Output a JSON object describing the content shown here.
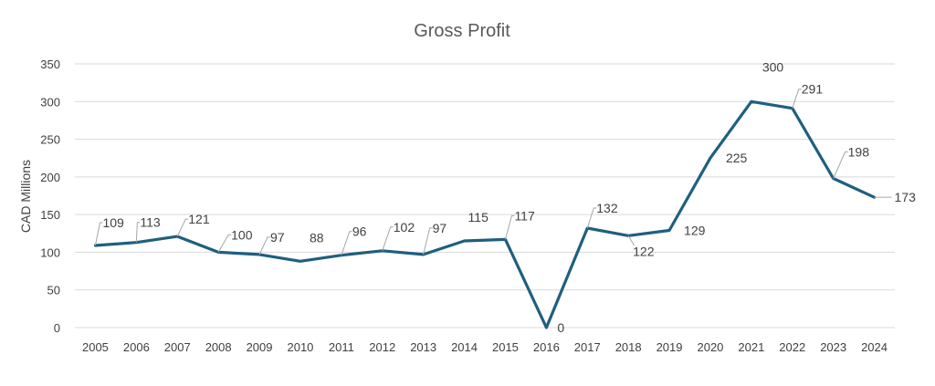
{
  "chart_data": {
    "type": "line",
    "title": "Gross Profit",
    "xlabel": "",
    "ylabel": "CAD Millions",
    "ylim": [
      0,
      350
    ],
    "yticks": [
      0,
      50,
      100,
      150,
      200,
      250,
      300,
      350
    ],
    "grid": true,
    "legend": "none",
    "categories": [
      "2005",
      "2006",
      "2007",
      "2008",
      "2009",
      "2010",
      "2011",
      "2012",
      "2013",
      "2014",
      "2015",
      "2016",
      "2017",
      "2018",
      "2019",
      "2020",
      "2021",
      "2022",
      "2023",
      "2024"
    ],
    "series": [
      {
        "values": [
          109,
          113,
          121,
          100,
          97,
          88,
          96,
          102,
          97,
          115,
          117,
          0,
          132,
          122,
          129,
          225,
          300,
          291,
          198,
          173
        ],
        "labels": [
          "109",
          "113",
          "121",
          "100",
          "97",
          "88",
          "96",
          "102",
          "97",
          "115",
          "117",
          "0",
          "132",
          "122",
          "129",
          "225",
          "300",
          "291",
          "198",
          "173"
        ]
      }
    ],
    "colors": {
      "series": "#1f5f7f",
      "grid": "#d9d9d9",
      "text": "#404040",
      "title": "#595959",
      "leader": "#a6a6a6"
    }
  }
}
